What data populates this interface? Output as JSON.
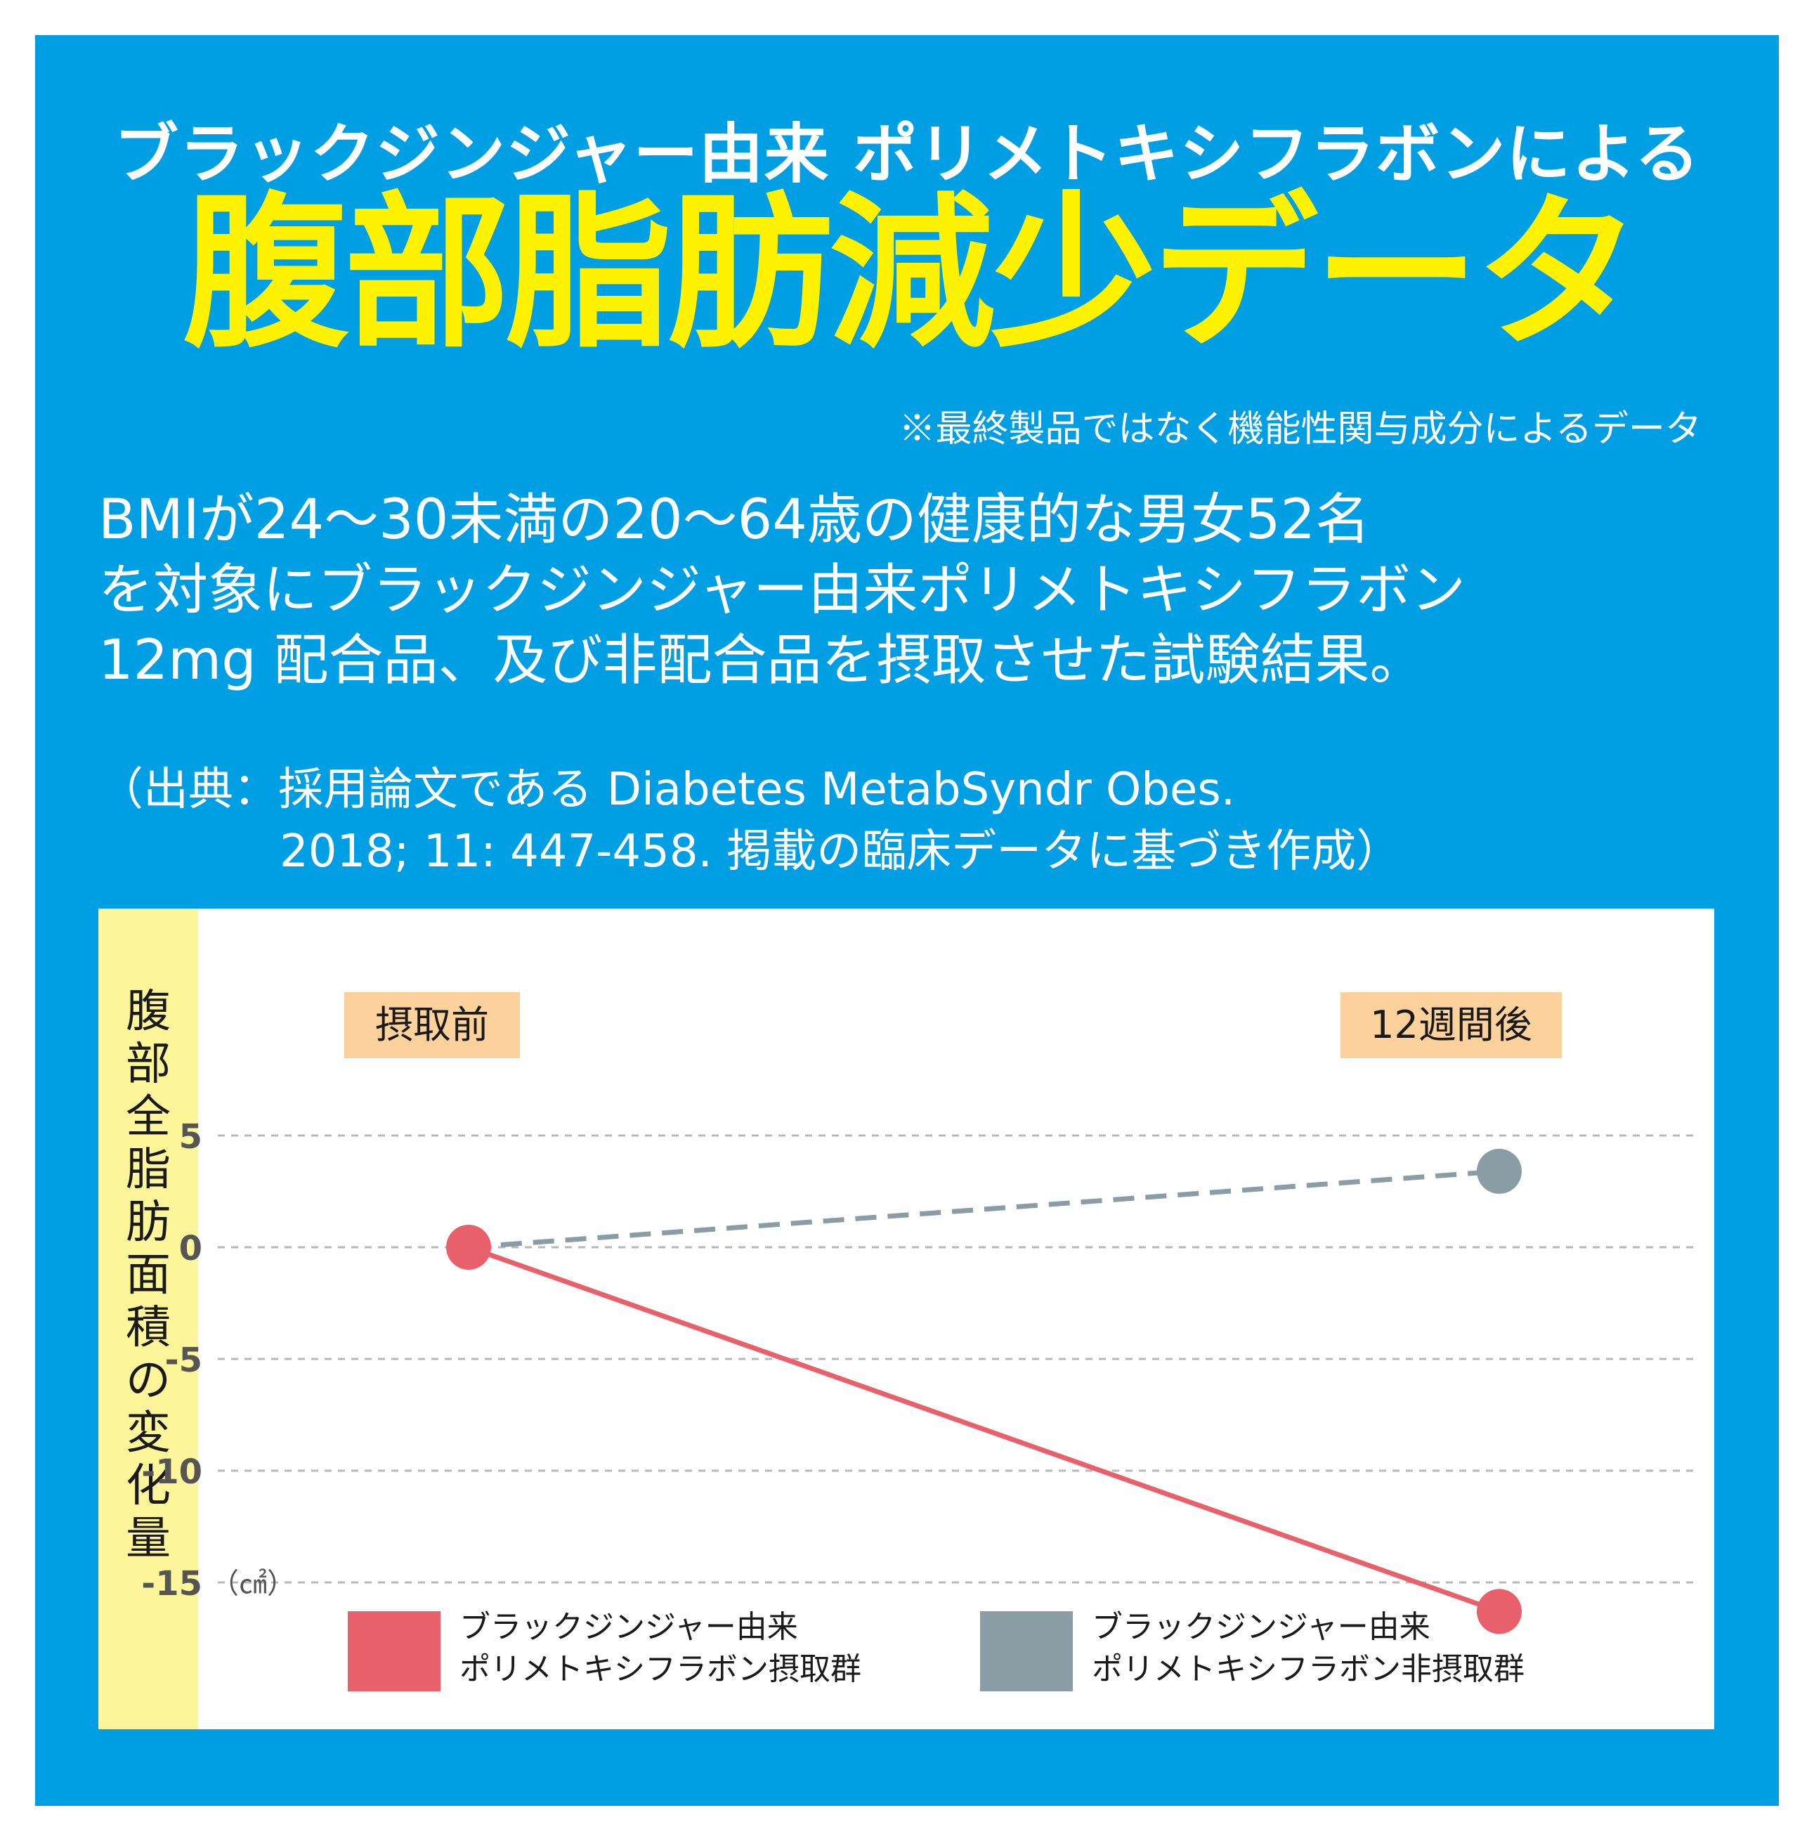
{
  "header": {
    "subtitle": "ブラックジンジャー由来 ポリメトキシフラボンによる",
    "title": "腹部脂肪減少データ",
    "note": "※最終製品ではなく機能性関与成分によるデータ"
  },
  "description": {
    "line1": "BMIが24〜30未満の20〜64歳の健康的な男女52名",
    "line2": "を対象にブラックジンジャー由来ポリメトキシフラボン",
    "line3": "12mg 配合品、及び非配合品を摂取させた試験結果。"
  },
  "source": {
    "line1": "（出典：採用論文である Diabetes MetabSyndr Obes.",
    "line2": "2018; 11: 447-458. 掲載の臨床データに基づき作成）"
  },
  "chart_data": {
    "type": "line",
    "categories": [
      "摂取前",
      "12週間後"
    ],
    "ylabel": "腹部全脂肪面積の変化量",
    "yunit": "（㎠）",
    "ylim": [
      -15,
      5
    ],
    "yticks": [
      "5",
      "0",
      "-5",
      "-10",
      "-15"
    ],
    "ytick_values": [
      5,
      0,
      -5,
      -10,
      -15
    ],
    "grid": true,
    "legend_position": "bottom",
    "series": [
      {
        "name": "ブラックジンジャー由来ポリメトキシフラボン摂取群",
        "legend_line1": "ブラックジンジャー由来",
        "legend_line2": "ポリメトキシフラボン摂取群",
        "values": [
          0,
          -16.3
        ],
        "color": "#e8606b",
        "style": "solid"
      },
      {
        "name": "ブラックジンジャー由来ポリメトキシフラボン非摂取群",
        "legend_line1": "ブラックジンジャー由来",
        "legend_line2": "ポリメトキシフラボン非摂取群",
        "values": [
          0,
          3.4
        ],
        "color": "#8a9da5",
        "style": "dashed"
      }
    ]
  },
  "colors": {
    "background": "#009fe3",
    "title": "#fff200",
    "ylabel_strip": "#fdf59a",
    "category_label": "#fcd19c"
  }
}
